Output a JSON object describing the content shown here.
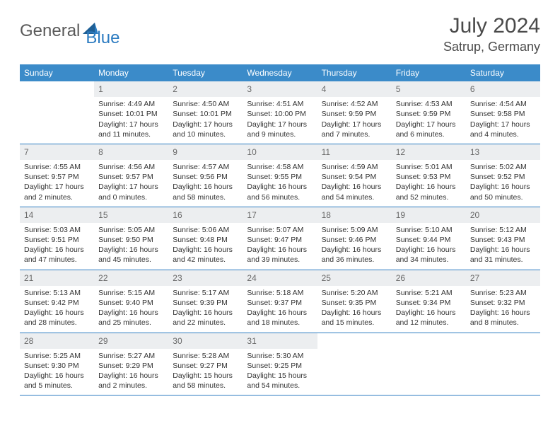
{
  "logo": {
    "text1": "General",
    "text2": "Blue"
  },
  "title": "July 2024",
  "location": "Satrup, Germany",
  "colors": {
    "header_bg": "#3b8bc9",
    "header_text": "#ffffff",
    "daynum_bg": "#eceef0",
    "border": "#2d7cc1",
    "logo_blue": "#2d7cc1",
    "logo_gray": "#5a5a5a"
  },
  "dayHeaders": [
    "Sunday",
    "Monday",
    "Tuesday",
    "Wednesday",
    "Thursday",
    "Friday",
    "Saturday"
  ],
  "weeks": [
    [
      {
        "num": "",
        "sunrise": "",
        "sunset": "",
        "daylight": "",
        "blank": true
      },
      {
        "num": "1",
        "sunrise": "Sunrise: 4:49 AM",
        "sunset": "Sunset: 10:01 PM",
        "daylight": "Daylight: 17 hours and 11 minutes."
      },
      {
        "num": "2",
        "sunrise": "Sunrise: 4:50 AM",
        "sunset": "Sunset: 10:01 PM",
        "daylight": "Daylight: 17 hours and 10 minutes."
      },
      {
        "num": "3",
        "sunrise": "Sunrise: 4:51 AM",
        "sunset": "Sunset: 10:00 PM",
        "daylight": "Daylight: 17 hours and 9 minutes."
      },
      {
        "num": "4",
        "sunrise": "Sunrise: 4:52 AM",
        "sunset": "Sunset: 9:59 PM",
        "daylight": "Daylight: 17 hours and 7 minutes."
      },
      {
        "num": "5",
        "sunrise": "Sunrise: 4:53 AM",
        "sunset": "Sunset: 9:59 PM",
        "daylight": "Daylight: 17 hours and 6 minutes."
      },
      {
        "num": "6",
        "sunrise": "Sunrise: 4:54 AM",
        "sunset": "Sunset: 9:58 PM",
        "daylight": "Daylight: 17 hours and 4 minutes."
      }
    ],
    [
      {
        "num": "7",
        "sunrise": "Sunrise: 4:55 AM",
        "sunset": "Sunset: 9:57 PM",
        "daylight": "Daylight: 17 hours and 2 minutes."
      },
      {
        "num": "8",
        "sunrise": "Sunrise: 4:56 AM",
        "sunset": "Sunset: 9:57 PM",
        "daylight": "Daylight: 17 hours and 0 minutes."
      },
      {
        "num": "9",
        "sunrise": "Sunrise: 4:57 AM",
        "sunset": "Sunset: 9:56 PM",
        "daylight": "Daylight: 16 hours and 58 minutes."
      },
      {
        "num": "10",
        "sunrise": "Sunrise: 4:58 AM",
        "sunset": "Sunset: 9:55 PM",
        "daylight": "Daylight: 16 hours and 56 minutes."
      },
      {
        "num": "11",
        "sunrise": "Sunrise: 4:59 AM",
        "sunset": "Sunset: 9:54 PM",
        "daylight": "Daylight: 16 hours and 54 minutes."
      },
      {
        "num": "12",
        "sunrise": "Sunrise: 5:01 AM",
        "sunset": "Sunset: 9:53 PM",
        "daylight": "Daylight: 16 hours and 52 minutes."
      },
      {
        "num": "13",
        "sunrise": "Sunrise: 5:02 AM",
        "sunset": "Sunset: 9:52 PM",
        "daylight": "Daylight: 16 hours and 50 minutes."
      }
    ],
    [
      {
        "num": "14",
        "sunrise": "Sunrise: 5:03 AM",
        "sunset": "Sunset: 9:51 PM",
        "daylight": "Daylight: 16 hours and 47 minutes."
      },
      {
        "num": "15",
        "sunrise": "Sunrise: 5:05 AM",
        "sunset": "Sunset: 9:50 PM",
        "daylight": "Daylight: 16 hours and 45 minutes."
      },
      {
        "num": "16",
        "sunrise": "Sunrise: 5:06 AM",
        "sunset": "Sunset: 9:48 PM",
        "daylight": "Daylight: 16 hours and 42 minutes."
      },
      {
        "num": "17",
        "sunrise": "Sunrise: 5:07 AM",
        "sunset": "Sunset: 9:47 PM",
        "daylight": "Daylight: 16 hours and 39 minutes."
      },
      {
        "num": "18",
        "sunrise": "Sunrise: 5:09 AM",
        "sunset": "Sunset: 9:46 PM",
        "daylight": "Daylight: 16 hours and 36 minutes."
      },
      {
        "num": "19",
        "sunrise": "Sunrise: 5:10 AM",
        "sunset": "Sunset: 9:44 PM",
        "daylight": "Daylight: 16 hours and 34 minutes."
      },
      {
        "num": "20",
        "sunrise": "Sunrise: 5:12 AM",
        "sunset": "Sunset: 9:43 PM",
        "daylight": "Daylight: 16 hours and 31 minutes."
      }
    ],
    [
      {
        "num": "21",
        "sunrise": "Sunrise: 5:13 AM",
        "sunset": "Sunset: 9:42 PM",
        "daylight": "Daylight: 16 hours and 28 minutes."
      },
      {
        "num": "22",
        "sunrise": "Sunrise: 5:15 AM",
        "sunset": "Sunset: 9:40 PM",
        "daylight": "Daylight: 16 hours and 25 minutes."
      },
      {
        "num": "23",
        "sunrise": "Sunrise: 5:17 AM",
        "sunset": "Sunset: 9:39 PM",
        "daylight": "Daylight: 16 hours and 22 minutes."
      },
      {
        "num": "24",
        "sunrise": "Sunrise: 5:18 AM",
        "sunset": "Sunset: 9:37 PM",
        "daylight": "Daylight: 16 hours and 18 minutes."
      },
      {
        "num": "25",
        "sunrise": "Sunrise: 5:20 AM",
        "sunset": "Sunset: 9:35 PM",
        "daylight": "Daylight: 16 hours and 15 minutes."
      },
      {
        "num": "26",
        "sunrise": "Sunrise: 5:21 AM",
        "sunset": "Sunset: 9:34 PM",
        "daylight": "Daylight: 16 hours and 12 minutes."
      },
      {
        "num": "27",
        "sunrise": "Sunrise: 5:23 AM",
        "sunset": "Sunset: 9:32 PM",
        "daylight": "Daylight: 16 hours and 8 minutes."
      }
    ],
    [
      {
        "num": "28",
        "sunrise": "Sunrise: 5:25 AM",
        "sunset": "Sunset: 9:30 PM",
        "daylight": "Daylight: 16 hours and 5 minutes."
      },
      {
        "num": "29",
        "sunrise": "Sunrise: 5:27 AM",
        "sunset": "Sunset: 9:29 PM",
        "daylight": "Daylight: 16 hours and 2 minutes."
      },
      {
        "num": "30",
        "sunrise": "Sunrise: 5:28 AM",
        "sunset": "Sunset: 9:27 PM",
        "daylight": "Daylight: 15 hours and 58 minutes."
      },
      {
        "num": "31",
        "sunrise": "Sunrise: 5:30 AM",
        "sunset": "Sunset: 9:25 PM",
        "daylight": "Daylight: 15 hours and 54 minutes."
      },
      {
        "num": "",
        "sunrise": "",
        "sunset": "",
        "daylight": "",
        "blank": true
      },
      {
        "num": "",
        "sunrise": "",
        "sunset": "",
        "daylight": "",
        "blank": true
      },
      {
        "num": "",
        "sunrise": "",
        "sunset": "",
        "daylight": "",
        "blank": true
      }
    ]
  ]
}
